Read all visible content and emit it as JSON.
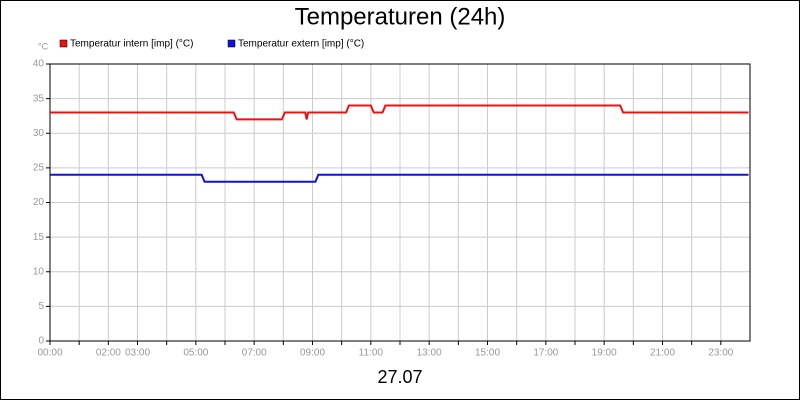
{
  "chart_data": {
    "type": "line",
    "title": "Temperaturen (24h)",
    "x_label": "27.07",
    "y_unit": "°C",
    "xlim": [
      0,
      24
    ],
    "ylim": [
      0,
      40
    ],
    "grid": true,
    "legend": "top-left",
    "xticks": [
      {
        "value": 0,
        "label": "00:00"
      },
      {
        "value": 1,
        "label": null
      },
      {
        "value": 2,
        "label": "02:00"
      },
      {
        "value": 3,
        "label": "03:00"
      },
      {
        "value": 4,
        "label": null
      },
      {
        "value": 5,
        "label": "05:00"
      },
      {
        "value": 6,
        "label": null
      },
      {
        "value": 7,
        "label": "07:00"
      },
      {
        "value": 8,
        "label": null
      },
      {
        "value": 9,
        "label": "09:00"
      },
      {
        "value": 10,
        "label": null
      },
      {
        "value": 11,
        "label": "11:00"
      },
      {
        "value": 12,
        "label": null
      },
      {
        "value": 13,
        "label": "13:00"
      },
      {
        "value": 14,
        "label": null
      },
      {
        "value": 15,
        "label": "15:00"
      },
      {
        "value": 16,
        "label": null
      },
      {
        "value": 17,
        "label": "17:00"
      },
      {
        "value": 18,
        "label": null
      },
      {
        "value": 19,
        "label": "19:00"
      },
      {
        "value": 20,
        "label": null
      },
      {
        "value": 21,
        "label": "21:00"
      },
      {
        "value": 22,
        "label": null
      },
      {
        "value": 23,
        "label": "23:00"
      }
    ],
    "yticks": [
      0,
      5,
      10,
      15,
      20,
      25,
      30,
      35,
      40
    ],
    "series": [
      {
        "name": "Temperatur intern [imp] (°C)",
        "color": "#ee1111",
        "x": [
          0,
          6.3,
          6.4,
          7.95,
          8.05,
          8.75,
          8.8,
          8.85,
          8.9,
          10.15,
          10.25,
          11.0,
          11.1,
          11.4,
          11.5,
          19.55,
          19.65,
          23.95
        ],
        "values": [
          33,
          33,
          32,
          32,
          33,
          33,
          32,
          33,
          33,
          33,
          34,
          34,
          33,
          33,
          34,
          34,
          33,
          33
        ]
      },
      {
        "name": "Temperatur extern [imp] (°C)",
        "color": "#1111dd",
        "x": [
          0,
          5.2,
          5.3,
          9.1,
          9.2,
          23.95
        ],
        "values": [
          24,
          24,
          23,
          23,
          24,
          24
        ]
      }
    ]
  }
}
